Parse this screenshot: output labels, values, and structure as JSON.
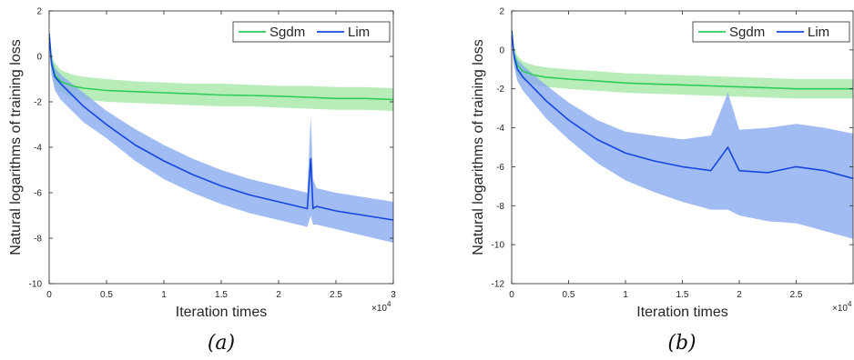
{
  "colors": {
    "sgdm_line": "#2ecc5a",
    "sgdm_band": "#a6e8a8",
    "lim_line": "#1646e0",
    "lim_band": "#8aaaf0",
    "axis": "#262626",
    "background": "#ffffff"
  },
  "chart_data": [
    {
      "type": "line",
      "caption": "(a)",
      "xlabel": "Iteration times",
      "ylabel": "Natural logarithms of training loss",
      "x_exponent_label": "×10^4",
      "xlim": [
        0,
        3
      ],
      "ylim": [
        -10,
        2
      ],
      "xticks": [
        0,
        0.5,
        1,
        1.5,
        2,
        2.5,
        3
      ],
      "xtick_labels": [
        "0",
        "0.5",
        "1",
        "1.5",
        "2",
        "2.5",
        "3"
      ],
      "yticks": [
        2,
        0,
        -2,
        -4,
        -6,
        -8,
        -10
      ],
      "ytick_labels": [
        "2",
        "0",
        "-2",
        "-4",
        "-6",
        "-8",
        "-10"
      ],
      "grid": false,
      "legend": {
        "position": "top-right",
        "entries": [
          "Sgdm",
          "Lim"
        ]
      },
      "series": [
        {
          "name": "Sgdm",
          "x": [
            0,
            0.02,
            0.05,
            0.1,
            0.2,
            0.3,
            0.5,
            0.75,
            1.0,
            1.25,
            1.5,
            1.75,
            2.0,
            2.25,
            2.5,
            2.75,
            3.0
          ],
          "y": [
            1.0,
            -0.2,
            -0.8,
            -1.1,
            -1.3,
            -1.4,
            -1.5,
            -1.55,
            -1.6,
            -1.65,
            -1.7,
            -1.72,
            -1.75,
            -1.8,
            -1.85,
            -1.85,
            -1.9
          ],
          "band": {
            "low": [
              0.6,
              -0.6,
              -1.3,
              -1.6,
              -1.8,
              -1.9,
              -2.0,
              -2.05,
              -2.1,
              -2.15,
              -2.2,
              -2.2,
              -2.25,
              -2.3,
              -2.35,
              -2.35,
              -2.4
            ],
            "high": [
              1.0,
              0.1,
              -0.3,
              -0.6,
              -0.8,
              -0.9,
              -1.0,
              -1.1,
              -1.15,
              -1.2,
              -1.2,
              -1.25,
              -1.3,
              -1.3,
              -1.35,
              -1.35,
              -1.4
            ]
          }
        },
        {
          "name": "Lim",
          "x": [
            0,
            0.02,
            0.05,
            0.1,
            0.2,
            0.3,
            0.5,
            0.75,
            1.0,
            1.25,
            1.5,
            1.75,
            2.0,
            2.25,
            2.28,
            2.3,
            2.33,
            2.5,
            2.75,
            3.0
          ],
          "y": [
            1.0,
            -0.3,
            -0.9,
            -1.2,
            -1.7,
            -2.2,
            -3.0,
            -3.9,
            -4.6,
            -5.2,
            -5.7,
            -6.1,
            -6.4,
            -6.7,
            -4.5,
            -6.7,
            -6.6,
            -6.8,
            -7.0,
            -7.2
          ],
          "band": {
            "low": [
              0.6,
              -0.8,
              -1.5,
              -1.9,
              -2.4,
              -2.9,
              -3.6,
              -4.6,
              -5.4,
              -6.0,
              -6.5,
              -6.9,
              -7.2,
              -7.5,
              -7.0,
              -7.4,
              -7.4,
              -7.6,
              -7.9,
              -8.2
            ],
            "high": [
              1.0,
              0.0,
              -0.5,
              -0.8,
              -1.2,
              -1.6,
              -2.4,
              -3.2,
              -3.9,
              -4.5,
              -5.0,
              -5.4,
              -5.7,
              -6.0,
              -2.6,
              -5.4,
              -5.8,
              -6.0,
              -6.2,
              -6.4
            ]
          }
        }
      ]
    },
    {
      "type": "line",
      "caption": "(b)",
      "xlabel": "Iteration times",
      "ylabel": "Natural logarithms of training loss",
      "x_exponent_label": "×10^4",
      "xlim": [
        0,
        3
      ],
      "ylim": [
        -12,
        2
      ],
      "xticks": [
        0,
        0.5,
        1,
        1.5,
        2,
        2.5
      ],
      "xtick_labels": [
        "0",
        "0.5",
        "1",
        "1.5",
        "2",
        "2.5"
      ],
      "yticks": [
        2,
        0,
        -2,
        -4,
        -6,
        -8,
        -10,
        -12
      ],
      "ytick_labels": [
        "2",
        "0",
        "-2",
        "-4",
        "-6",
        "-8",
        "-10",
        "-12"
      ],
      "grid": false,
      "legend": {
        "position": "top-right",
        "entries": [
          "Sgdm",
          "Lim"
        ]
      },
      "series": [
        {
          "name": "Sgdm",
          "x": [
            0,
            0.02,
            0.05,
            0.1,
            0.2,
            0.3,
            0.5,
            0.75,
            1.0,
            1.25,
            1.5,
            1.75,
            2.0,
            2.25,
            2.5,
            2.75,
            3.0
          ],
          "y": [
            1.0,
            -0.2,
            -0.8,
            -1.1,
            -1.3,
            -1.4,
            -1.5,
            -1.6,
            -1.7,
            -1.75,
            -1.8,
            -1.85,
            -1.9,
            -1.95,
            -2.0,
            -2.0,
            -2.0
          ],
          "band": {
            "low": [
              0.6,
              -0.6,
              -1.3,
              -1.6,
              -1.8,
              -1.9,
              -2.0,
              -2.1,
              -2.2,
              -2.25,
              -2.3,
              -2.35,
              -2.4,
              -2.45,
              -2.5,
              -2.5,
              -2.5
            ],
            "high": [
              1.0,
              0.1,
              -0.3,
              -0.6,
              -0.8,
              -0.9,
              -1.0,
              -1.1,
              -1.2,
              -1.25,
              -1.3,
              -1.35,
              -1.4,
              -1.45,
              -1.5,
              -1.5,
              -1.5
            ]
          }
        },
        {
          "name": "Lim",
          "x": [
            0,
            0.02,
            0.05,
            0.1,
            0.2,
            0.3,
            0.5,
            0.75,
            1.0,
            1.25,
            1.5,
            1.75,
            1.9,
            2.0,
            2.25,
            2.5,
            2.75,
            3.0
          ],
          "y": [
            1.0,
            -0.3,
            -1.0,
            -1.4,
            -2.0,
            -2.6,
            -3.6,
            -4.6,
            -5.3,
            -5.7,
            -6.0,
            -6.2,
            -5.0,
            -6.2,
            -6.3,
            -6.0,
            -6.2,
            -6.6
          ],
          "band": {
            "low": [
              0.6,
              -0.8,
              -1.6,
              -2.1,
              -2.8,
              -3.5,
              -4.6,
              -5.8,
              -6.7,
              -7.3,
              -7.8,
              -8.2,
              -8.2,
              -8.5,
              -8.8,
              -8.9,
              -9.3,
              -9.7
            ],
            "high": [
              1.0,
              0.0,
              -0.5,
              -0.8,
              -1.3,
              -1.8,
              -2.7,
              -3.6,
              -4.2,
              -4.4,
              -4.6,
              -4.4,
              -2.2,
              -4.1,
              -4.0,
              -3.8,
              -4.0,
              -4.3
            ]
          }
        }
      ]
    }
  ]
}
